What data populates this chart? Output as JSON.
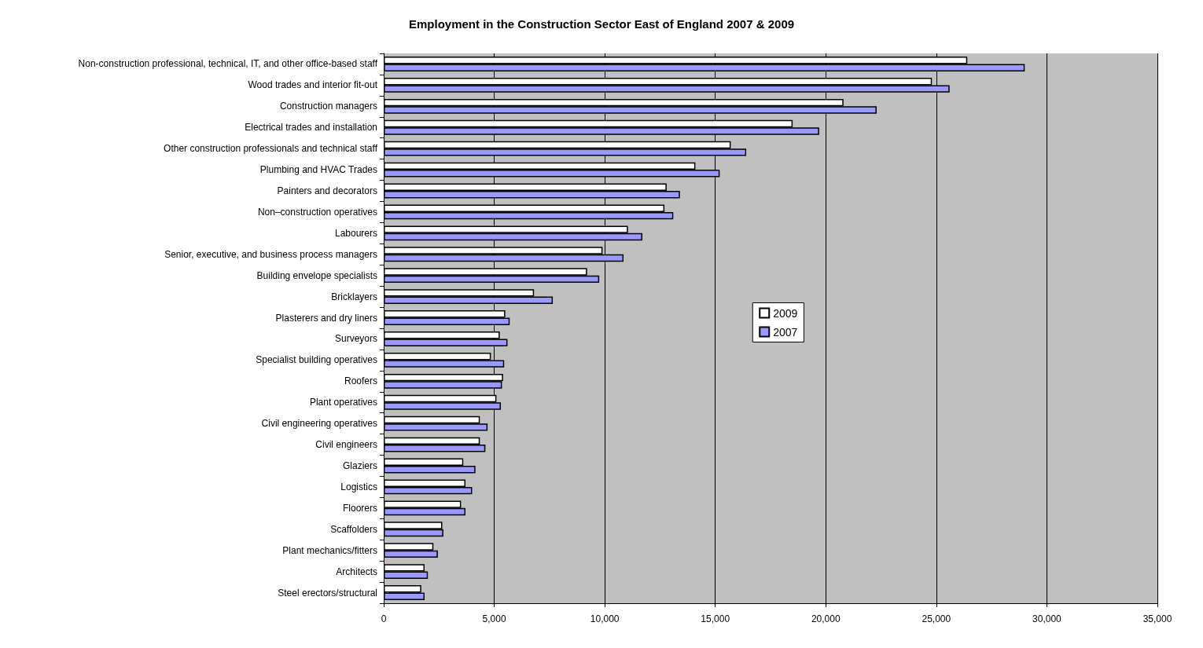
{
  "chart_data": {
    "type": "bar",
    "orientation": "horizontal",
    "title": "Employment in the Construction Sector East of England 2007 & 2009",
    "categories": [
      "Non-construction professional, technical, IT, and other office-based staff",
      "Wood trades and interior fit-out",
      "Construction managers",
      "Electrical trades and installation",
      "Other construction professionals and technical staff",
      "Plumbing and HVAC Trades",
      "Painters and decorators",
      "Non–construction operatives",
      "Labourers",
      "Senior, executive, and business process managers",
      "Building envelope specialists",
      "Bricklayers",
      "Plasterers and dry liners",
      "Surveyors",
      "Specialist building operatives",
      "Roofers",
      "Plant operatives",
      "Civil engineering operatives",
      "Civil engineers",
      "Glaziers",
      "Logistics",
      "Floorers",
      "Scaffolders",
      "Plant mechanics/fitters",
      "Architects",
      "Steel erectors/structural"
    ],
    "series": [
      {
        "name": "2009",
        "color": "#ffffff",
        "values": [
          26400,
          24800,
          20800,
          18500,
          15700,
          14100,
          12800,
          12700,
          11050,
          9900,
          9200,
          6800,
          5500,
          5250,
          4850,
          5400,
          5100,
          4350,
          4350,
          3600,
          3700,
          3500,
          2650,
          2250,
          1850,
          1700
        ]
      },
      {
        "name": "2007",
        "color": "#9999ff",
        "values": [
          29000,
          25600,
          22300,
          19700,
          16400,
          15200,
          13400,
          13100,
          11700,
          10850,
          9750,
          7650,
          5700,
          5600,
          5450,
          5350,
          5300,
          4700,
          4600,
          4150,
          4000,
          3700,
          2700,
          2450,
          2000,
          1850
        ]
      }
    ],
    "xlim": [
      0,
      35000
    ],
    "xticks": [
      0,
      {
        "value": 5000,
        "label": "5,000"
      },
      {
        "value": 10000,
        "label": "10,000"
      },
      {
        "value": 15000,
        "label": "15,000"
      },
      {
        "value": 20000,
        "label": "20,000"
      },
      {
        "value": 25000,
        "label": "25,000"
      },
      {
        "value": 30000,
        "label": "30,000"
      },
      {
        "value": 35000,
        "label": "35,000"
      }
    ],
    "grid": "x",
    "legend": "right"
  }
}
